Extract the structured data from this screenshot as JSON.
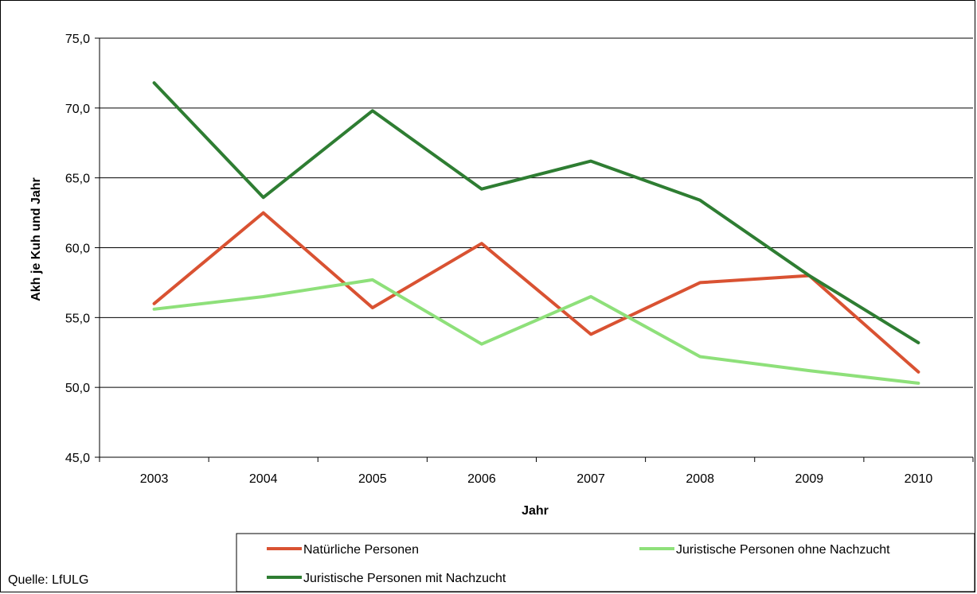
{
  "chart_data": {
    "type": "line",
    "title": "",
    "xlabel": "Jahr",
    "ylabel": "Akh je Kuh und Jahr",
    "categories": [
      "2003",
      "2004",
      "2005",
      "2006",
      "2007",
      "2008",
      "2009",
      "2010"
    ],
    "ylim": [
      45,
      75
    ],
    "yticks": [
      45,
      50,
      55,
      60,
      65,
      70,
      75
    ],
    "ytick_labels": [
      "45,0",
      "50,0",
      "55,0",
      "60,0",
      "65,0",
      "70,0",
      "75,0"
    ],
    "grid": true,
    "legend_position": "bottom",
    "series": [
      {
        "name": "Natürliche Personen",
        "color": "#d95232",
        "values": [
          56.0,
          62.5,
          55.7,
          60.3,
          53.8,
          57.5,
          58.0,
          51.1
        ]
      },
      {
        "name": "Juristische Personen ohne Nachzucht",
        "color": "#8ee07a",
        "values": [
          55.6,
          56.5,
          57.7,
          53.1,
          56.5,
          52.2,
          51.2,
          50.3
        ]
      },
      {
        "name": "Juristische Personen mit Nachzucht",
        "color": "#2e7d32",
        "values": [
          71.8,
          63.6,
          69.8,
          64.2,
          66.2,
          63.4,
          58.0,
          53.2
        ]
      }
    ]
  },
  "source": "Quelle: LfULG"
}
